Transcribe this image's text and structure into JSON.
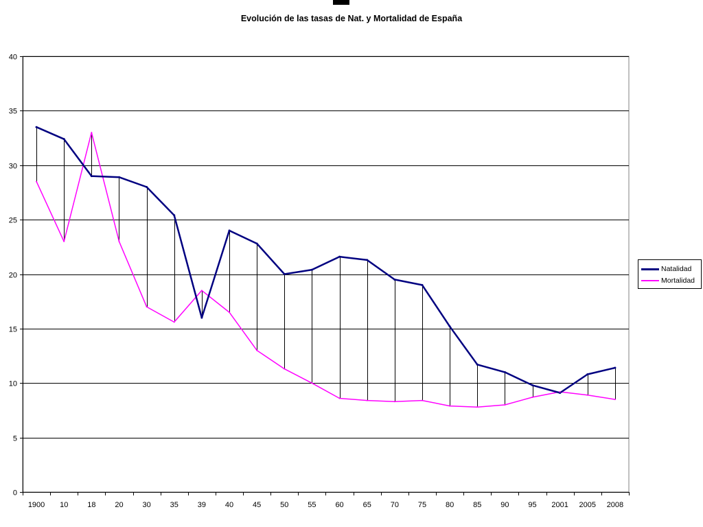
{
  "title": "Evolución de las tasas de Nat. y Mortalidad de España",
  "colors": {
    "natalidad": "#000080",
    "mortalidad": "#ff00ff",
    "grid": "#000000"
  },
  "chart_data": {
    "type": "line",
    "title": "Evolución de las tasas de Nat. y Mortalidad de España",
    "xlabel": "",
    "ylabel": "",
    "ylim": [
      0,
      40
    ],
    "yticks": [
      0,
      5,
      10,
      15,
      20,
      25,
      30,
      35,
      40
    ],
    "grid": true,
    "legend_position": "right",
    "categories": [
      "1900",
      "10",
      "18",
      "20",
      "30",
      "35",
      "39",
      "40",
      "45",
      "50",
      "55",
      "60",
      "65",
      "70",
      "75",
      "80",
      "85",
      "90",
      "95",
      "2001",
      "2005",
      "2008"
    ],
    "series": [
      {
        "name": "Natalidad",
        "color": "#000080",
        "values": [
          33.5,
          32.4,
          29.0,
          28.9,
          28.0,
          25.4,
          16.0,
          24.0,
          22.8,
          20.0,
          20.4,
          21.6,
          21.3,
          19.5,
          19.0,
          15.2,
          11.7,
          11.0,
          9.8,
          9.1,
          10.8,
          11.4
        ]
      },
      {
        "name": "Mortalidad",
        "color": "#ff00ff",
        "values": [
          28.5,
          23.0,
          33.0,
          23.0,
          17.0,
          15.6,
          18.5,
          16.5,
          13.0,
          11.3,
          10.0,
          8.6,
          8.4,
          8.3,
          8.4,
          7.9,
          7.8,
          8.0,
          8.7,
          9.2,
          8.9,
          8.5
        ]
      }
    ]
  }
}
